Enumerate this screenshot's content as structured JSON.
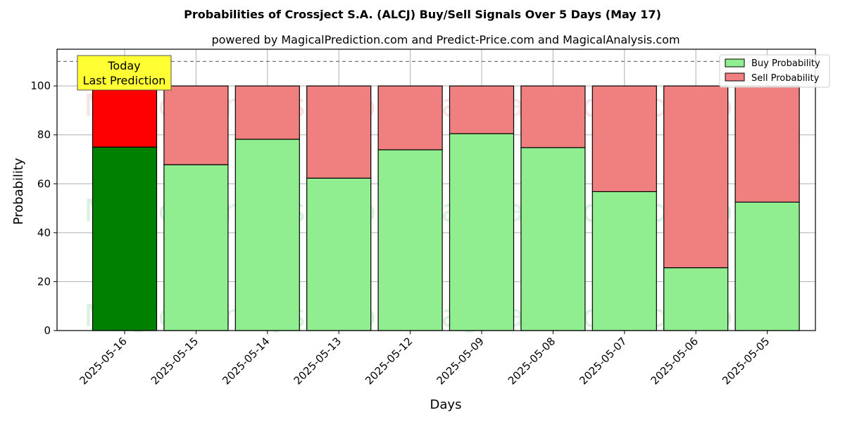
{
  "chart_data": {
    "type": "bar",
    "stacked": true,
    "title": "Probabilities of Crossject S.A. (ALCJ) Buy/Sell Signals Over 5 Days (May 17)",
    "subtitle": "powered by MagicalPrediction.com and Predict-Price.com and MagicalAnalysis.com",
    "xlabel": "Days",
    "ylabel": "Probability",
    "categories": [
      "2025-05-16",
      "2025-05-15",
      "2025-05-14",
      "2025-05-13",
      "2025-05-12",
      "2025-05-09",
      "2025-05-08",
      "2025-05-07",
      "2025-05-06",
      "2025-05-05"
    ],
    "series": [
      {
        "name": "Buy Probability",
        "values": [
          75.0,
          67.8,
          78.2,
          62.3,
          73.9,
          80.5,
          74.8,
          56.8,
          25.7,
          52.5
        ]
      },
      {
        "name": "Sell Probability",
        "values": [
          25.0,
          32.2,
          21.8,
          37.7,
          26.1,
          19.5,
          25.2,
          43.2,
          74.3,
          47.5
        ]
      }
    ],
    "ylim": [
      0,
      115
    ],
    "yticks": [
      0,
      20,
      40,
      60,
      80,
      100
    ],
    "reference_line": 110,
    "grid": true,
    "legend_position": "top-right",
    "colors": {
      "buy": "#90ee90",
      "sell": "#f08080",
      "buy_highlight": "#008000",
      "sell_highlight": "#ff0000",
      "annotation_bg": "#ffff33"
    },
    "annotation": {
      "line1": "Today",
      "line2": "Last Prediction"
    },
    "watermarks": [
      "MagicalAnalysis.com",
      "MagicalPrediction.com"
    ]
  }
}
